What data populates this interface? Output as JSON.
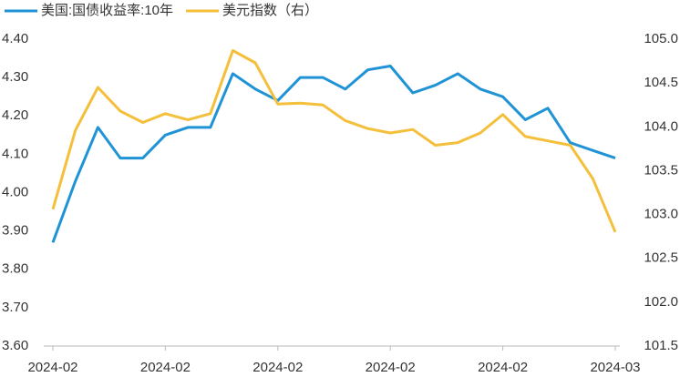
{
  "chart_data": {
    "type": "line",
    "categories": [
      "2024-02",
      null,
      null,
      null,
      null,
      "2024-02",
      null,
      null,
      null,
      null,
      "2024-02",
      null,
      null,
      null,
      null,
      "2024-02",
      null,
      null,
      null,
      null,
      "2024-02",
      null,
      null,
      null,
      null,
      "2024-03"
    ],
    "series": [
      {
        "name": "美国:国债收益率:10年",
        "color": "#1f93d6",
        "values": [
          3.87,
          4.03,
          4.17,
          4.09,
          4.09,
          4.15,
          4.17,
          4.17,
          4.31,
          4.27,
          4.24,
          4.3,
          4.3,
          4.27,
          4.32,
          4.33,
          4.26,
          4.28,
          4.31,
          4.27,
          4.25,
          4.19,
          4.22,
          4.13,
          4.11,
          4.09
        ]
      },
      {
        "name": "美元指数（右）",
        "color": "#f4bf3a",
        "axis": "y2",
        "values": [
          103.06,
          103.96,
          104.45,
          104.18,
          104.05,
          104.15,
          104.08,
          104.15,
          104.87,
          104.73,
          104.26,
          104.27,
          104.25,
          104.07,
          103.98,
          103.93,
          103.97,
          103.79,
          103.82,
          103.93,
          104.14,
          103.89,
          103.84,
          103.79,
          103.41,
          102.8
        ]
      }
    ],
    "ylim": [
      3.6,
      4.4
    ],
    "yticks": [
      {
        "value": 3.6,
        "label": "3.60"
      },
      {
        "value": 3.7,
        "label": "3.70"
      },
      {
        "value": 3.8,
        "label": "3.80"
      },
      {
        "value": 3.9,
        "label": "3.90"
      },
      {
        "value": 4.0,
        "label": "4.00"
      },
      {
        "value": 4.1,
        "label": "4.10"
      },
      {
        "value": 4.2,
        "label": "4.20"
      },
      {
        "value": 4.3,
        "label": "4.30"
      },
      {
        "value": 4.4,
        "label": "4.40"
      }
    ],
    "y2lim": [
      101.5,
      105.0
    ],
    "y2ticks": [
      101.5,
      {
        "value": 102,
        "label": "102.0"
      },
      102.5,
      {
        "value": 103,
        "label": "103.0"
      },
      103.5,
      {
        "value": 104,
        "label": "104.0"
      },
      104.5,
      {
        "value": 105,
        "label": "105.0"
      }
    ],
    "grid": false,
    "legend": "top"
  }
}
